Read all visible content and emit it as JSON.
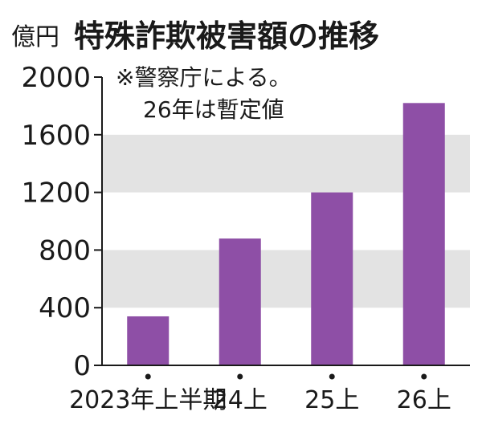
{
  "chart_data": {
    "type": "bar",
    "unit": "億円",
    "title": "特殊詐欺被害額の推移",
    "note_lines": [
      "※警察庁による。",
      "26年は暫定値"
    ],
    "categories": [
      "2023年上半期",
      "24上",
      "25上",
      "26上"
    ],
    "values": [
      340,
      880,
      1200,
      1820
    ],
    "ylim": [
      0,
      2000
    ],
    "yticks": [
      0,
      400,
      800,
      1200,
      1600,
      2000
    ],
    "bar_color": "#8e4fa6",
    "band_color": "#e3e3e3",
    "grid": false,
    "legend": "none"
  }
}
